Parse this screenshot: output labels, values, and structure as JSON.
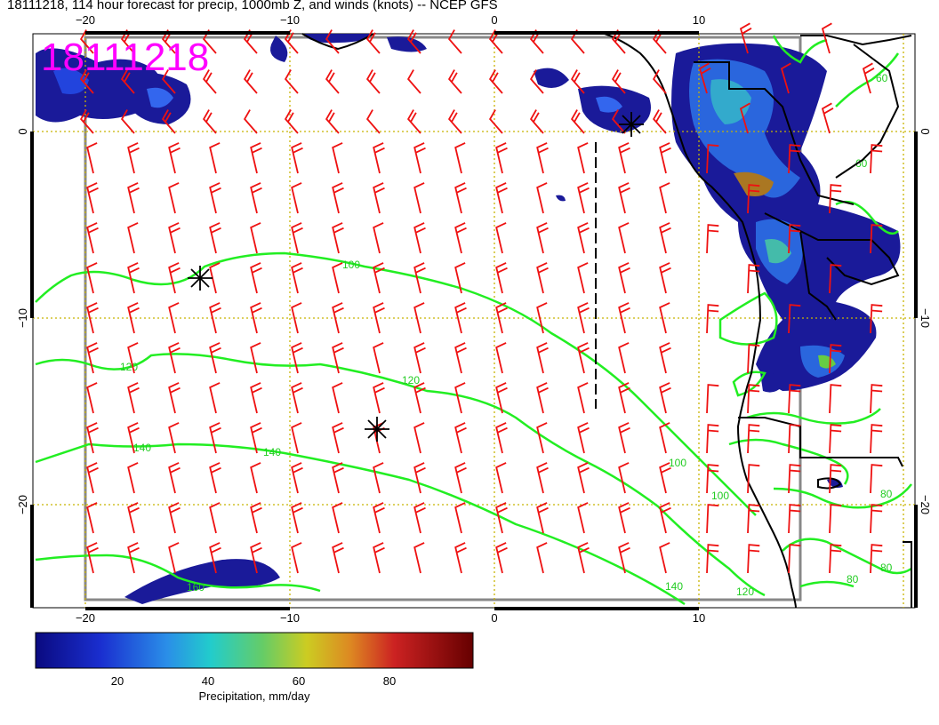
{
  "title": "18111218, 114 hour forecast for precip, 1000mb Z, and winds (knots) -- NCEP GFS",
  "stamp": "18111218",
  "axes": {
    "lon_ticks": [
      "−20",
      "−10",
      "0",
      "10"
    ],
    "lat_ticks": [
      "0",
      "−10",
      "−20"
    ]
  },
  "contours": {
    "labels": [
      "100",
      "120",
      "120",
      "140",
      "140",
      "160",
      "100",
      "100",
      "120",
      "140",
      "80",
      "80",
      "80",
      "60",
      "60"
    ]
  },
  "colorbar": {
    "label": "Precipitation, mm/day",
    "ticks": [
      "20",
      "40",
      "60",
      "80"
    ],
    "tick_values": [
      20,
      40,
      60,
      80
    ],
    "range": [
      0,
      100
    ]
  },
  "colors": {
    "barb": "#ee1111",
    "contour": "#22ee22",
    "grid": "#c8b400",
    "coast": "#000000",
    "stamp": "#ff00ff"
  }
}
